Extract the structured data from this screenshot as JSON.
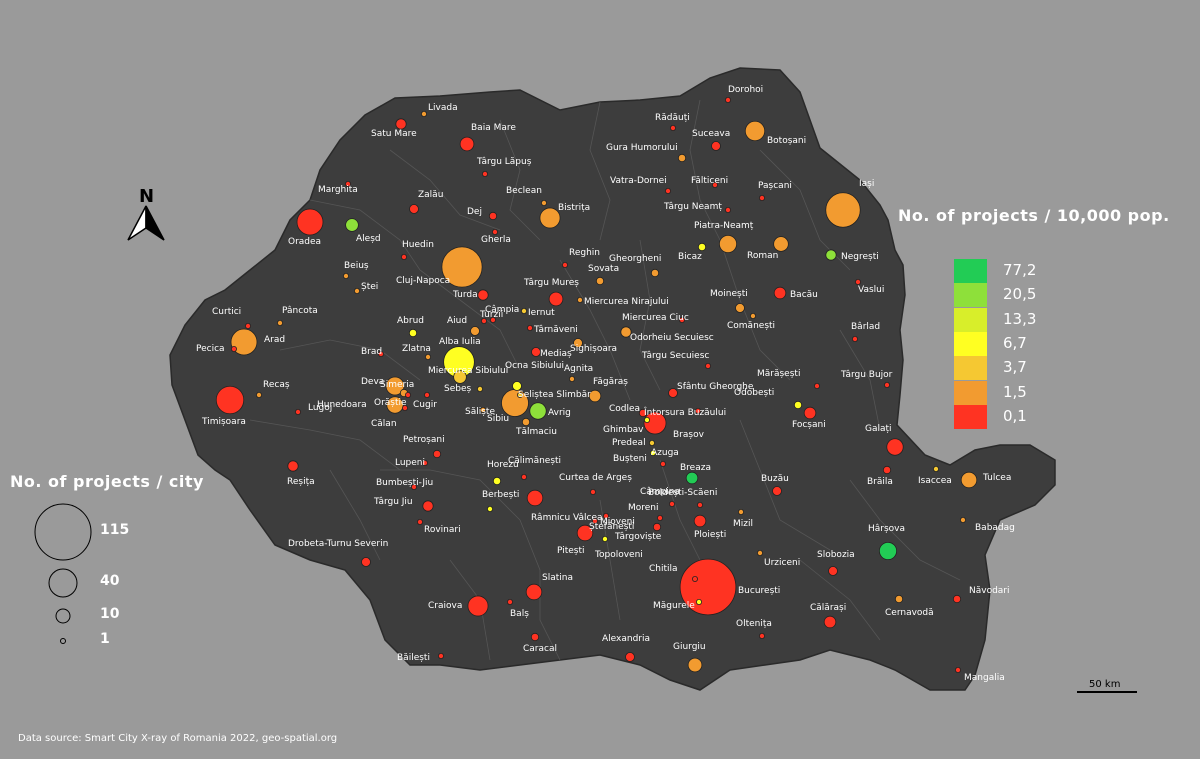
{
  "map": {
    "color_legend_title": "No. of projects / 10,000 pop.",
    "size_legend_title": "No. of projects / city",
    "source": "Data source: Smart City X-ray of Romania 2022, geo-spatial.org",
    "scale_label": "50 km",
    "north_label": "N",
    "colors": {
      "background": "#9a9a9a",
      "land": "#3d3d3d",
      "border": "#555555"
    }
  },
  "color_legend": [
    {
      "label": "77,2",
      "color": "#22cc55"
    },
    {
      "label": "20,5",
      "color": "#8ee03a"
    },
    {
      "label": "13,3",
      "color": "#d8ee2a"
    },
    {
      "label": "6,7",
      "color": "#ffff22"
    },
    {
      "label": "3,7",
      "color": "#f5c832"
    },
    {
      "label": "1,5",
      "color": "#f29b30"
    },
    {
      "label": "0,1",
      "color": "#ff3322"
    }
  ],
  "size_legend": [
    {
      "label": "115",
      "value": 115
    },
    {
      "label": "40",
      "value": 40
    },
    {
      "label": "10",
      "value": 10
    },
    {
      "label": "1",
      "value": 1
    }
  ],
  "cities": [
    {
      "name": "Dorohoi",
      "cls": 0,
      "size": 1
    },
    {
      "name": "Rădăuți",
      "cls": 0,
      "size": 1
    },
    {
      "name": "Suceava",
      "cls": 0,
      "size": 3
    },
    {
      "name": "Botoșani",
      "cls": 1,
      "size": 14
    },
    {
      "name": "Gura Humorului",
      "cls": 1,
      "size": 2
    },
    {
      "name": "Vatra-Dornei",
      "cls": 0,
      "size": 1
    },
    {
      "name": "Fălticeni",
      "cls": 0,
      "size": 1
    },
    {
      "name": "Pașcani",
      "cls": 0,
      "size": 1
    },
    {
      "name": "Iași",
      "cls": 1,
      "size": 44
    },
    {
      "name": "Târgu Neamț",
      "cls": 0,
      "size": 1
    },
    {
      "name": "Piatra-Neamț",
      "cls": 1,
      "size": 11
    },
    {
      "name": "Roman",
      "cls": 1,
      "size": 8
    },
    {
      "name": "Negrești",
      "cls": 5,
      "size": 4
    },
    {
      "name": "Vaslui",
      "cls": 0,
      "size": 1
    },
    {
      "name": "Bicaz",
      "cls": 3,
      "size": 2
    },
    {
      "name": "Gheorgheni",
      "cls": 1,
      "size": 2
    },
    {
      "name": "Moinești",
      "cls": 1,
      "size": 3
    },
    {
      "name": "Bacău",
      "cls": 0,
      "size": 5
    },
    {
      "name": "Comănești",
      "cls": 1,
      "size": 1
    },
    {
      "name": "Bârlad",
      "cls": 0,
      "size": 1
    },
    {
      "name": "Târgu Bujor",
      "cls": 0,
      "size": 1
    },
    {
      "name": "Mărășești",
      "cls": 0,
      "size": 1
    },
    {
      "name": "Odobești",
      "cls": 3,
      "size": 2
    },
    {
      "name": "Focșani",
      "cls": 0,
      "size": 5
    },
    {
      "name": "Galați",
      "cls": 0,
      "size": 10
    },
    {
      "name": "Brăila",
      "cls": 0,
      "size": 2
    },
    {
      "name": "Isaccea",
      "cls": 2,
      "size": 1
    },
    {
      "name": "Tulcea",
      "cls": 1,
      "size": 9
    },
    {
      "name": "Babadag",
      "cls": 1,
      "size": 1
    },
    {
      "name": "Hârșova",
      "cls": 6,
      "size": 11
    },
    {
      "name": "Cernavodă",
      "cls": 1,
      "size": 2
    },
    {
      "name": "Năvodari",
      "cls": 0,
      "size": 2
    },
    {
      "name": "Mangalia",
      "cls": 0,
      "size": 1
    },
    {
      "name": "Călărași",
      "cls": 0,
      "size": 5
    },
    {
      "name": "Oltenița",
      "cls": 0,
      "size": 1
    },
    {
      "name": "Giurgiu",
      "cls": 1,
      "size": 7
    },
    {
      "name": "Slobozia",
      "cls": 0,
      "size": 3
    },
    {
      "name": "Urziceni",
      "cls": 1,
      "size": 1
    },
    {
      "name": "București",
      "cls": 0,
      "size": 115
    },
    {
      "name": "Chitila",
      "cls": 0,
      "size": 1
    },
    {
      "name": "Măgurele",
      "cls": 3,
      "size": 1
    },
    {
      "name": "Ploiești",
      "cls": 0,
      "size": 5
    },
    {
      "name": "Mizil",
      "cls": 1,
      "size": 1
    },
    {
      "name": "Buzău",
      "cls": 0,
      "size": 3
    },
    {
      "name": "Boldești-Scăeni",
      "cls": 0,
      "size": 1
    },
    {
      "name": "Câmpina",
      "cls": 0,
      "size": 1
    },
    {
      "name": "Breaza",
      "cls": 6,
      "size": 5
    },
    {
      "name": "Bușteni",
      "cls": 0,
      "size": 1
    },
    {
      "name": "Azuga",
      "cls": 3,
      "size": 1
    },
    {
      "name": "Predeal",
      "cls": 2,
      "size": 1
    },
    {
      "name": "Brașov",
      "cls": 0,
      "size": 18
    },
    {
      "name": "Ghimbav",
      "cls": 3,
      "size": 1
    },
    {
      "name": "Codlea",
      "cls": 0,
      "size": 2
    },
    {
      "name": "Întorsura Buzăului",
      "cls": 0,
      "size": 1
    },
    {
      "name": "Sfântu Gheorghe",
      "cls": 0,
      "size": 3
    },
    {
      "name": "Târgu Secuiesc",
      "cls": 0,
      "size": 1
    },
    {
      "name": "Miercurea Ciuc",
      "cls": 0,
      "size": 1
    },
    {
      "name": "Odorheiu Secuiesc",
      "cls": 1,
      "size": 4
    },
    {
      "name": "Miercurea Nirajului",
      "cls": 1,
      "size": 1
    },
    {
      "name": "Sovata",
      "cls": 1,
      "size": 2
    },
    {
      "name": "Reghin",
      "cls": 0,
      "size": 1
    },
    {
      "name": "Târgu Mureș",
      "cls": 0,
      "size": 7
    },
    {
      "name": "Sighișoara",
      "cls": 1,
      "size": 3
    },
    {
      "name": "Mediaș",
      "cls": 0,
      "size": 3
    },
    {
      "name": "Agnita",
      "cls": 1,
      "size": 1
    },
    {
      "name": "Făgăraș",
      "cls": 1,
      "size": 5
    },
    {
      "name": "Avrig",
      "cls": 5,
      "size": 10
    },
    {
      "name": "Sibiu",
      "cls": 1,
      "size": 27
    },
    {
      "name": "Tălmaciu",
      "cls": 1,
      "size": 2
    },
    {
      "name": "Săliște",
      "cls": 1,
      "size": 1
    },
    {
      "name": "Ocna Sibiului",
      "cls": 3,
      "size": 3
    },
    {
      "name": "Miercurea Sibiului",
      "cls": 2,
      "size": 1
    },
    {
      "name": "Seliștea Slimbăr",
      "cls": 2,
      "size": 1
    },
    {
      "name": "Alba Iulia",
      "cls": 3,
      "size": 35
    },
    {
      "name": "Sebeș",
      "cls": 2,
      "size": 6
    },
    {
      "name": "Cugir",
      "cls": 0,
      "size": 1
    },
    {
      "name": "Orăștie",
      "cls": 1,
      "size": 2
    },
    {
      "name": "Simeria",
      "cls": 0,
      "size": 1
    },
    {
      "name": "Deva",
      "cls": 1,
      "size": 12
    },
    {
      "name": "Hunedoara",
      "cls": 1,
      "size": 10
    },
    {
      "name": "Călan",
      "cls": 0,
      "size": 1
    },
    {
      "name": "Petroșani",
      "cls": 0,
      "size": 2
    },
    {
      "name": "Lupeni",
      "cls": 0,
      "size": 1
    },
    {
      "name": "Brad",
      "cls": 0,
      "size": 1
    },
    {
      "name": "Zlatna",
      "cls": 1,
      "size": 1
    },
    {
      "name": "Abrud",
      "cls": 3,
      "size": 2
    },
    {
      "name": "Aiud",
      "cls": 1,
      "size": 3
    },
    {
      "name": "Turzii",
      "cls": 0,
      "size": 1
    },
    {
      "name": "Câmpia",
      "cls": 0,
      "size": 1
    },
    {
      "name": "Turda",
      "cls": 0,
      "size": 4
    },
    {
      "name": "Iernut",
      "cls": 2,
      "size": 1
    },
    {
      "name": "Târnăveni",
      "cls": 0,
      "size": 1
    },
    {
      "name": "Cluj-Napoca",
      "cls": 1,
      "size": 60
    },
    {
      "name": "Huedin",
      "cls": 0,
      "size": 1
    },
    {
      "name": "Gherla",
      "cls": 0,
      "size": 1
    },
    {
      "name": "Dej",
      "cls": 0,
      "size": 2
    },
    {
      "name": "Beclean",
      "cls": 1,
      "size": 1
    },
    {
      "name": "Bistrița",
      "cls": 1,
      "size": 15
    },
    {
      "name": "Târgu Lăpuș",
      "cls": 0,
      "size": 1
    },
    {
      "name": "Baia Mare",
      "cls": 0,
      "size": 7
    },
    {
      "name": "Livada",
      "cls": 1,
      "size": 1
    },
    {
      "name": "Satu Mare",
      "cls": 0,
      "size": 4
    },
    {
      "name": "Marghita",
      "cls": 0,
      "size": 1
    },
    {
      "name": "Zalău",
      "cls": 0,
      "size": 3
    },
    {
      "name": "Oradea",
      "cls": 0,
      "size": 25
    },
    {
      "name": "Aleșd",
      "cls": 5,
      "size": 6
    },
    {
      "name": "Beiuș",
      "cls": 1,
      "size": 1
    },
    {
      "name": "Ștei",
      "cls": 1,
      "size": 1
    },
    {
      "name": "Curtici",
      "cls": 0,
      "size": 1
    },
    {
      "name": "Pâncota",
      "cls": 1,
      "size": 1
    },
    {
      "name": "Arad",
      "cls": 1,
      "size": 25
    },
    {
      "name": "Pecica",
      "cls": 0,
      "size": 1
    },
    {
      "name": "Recaș",
      "cls": 1,
      "size": 1
    },
    {
      "name": "Timișoara",
      "cls": 0,
      "size": 28
    },
    {
      "name": "Lugoj",
      "cls": 0,
      "size": 1
    },
    {
      "name": "Reșița",
      "cls": 0,
      "size": 4
    },
    {
      "name": "Bumbești-Jiu",
      "cls": 0,
      "size": 1
    },
    {
      "name": "Târgu Jiu",
      "cls": 0,
      "size": 4
    },
    {
      "name": "Rovinari",
      "cls": 0,
      "size": 1
    },
    {
      "name": "Drobeta-Turnu Severin",
      "cls": 0,
      "size": 3
    },
    {
      "name": "Horezu",
      "cls": 3,
      "size": 2
    },
    {
      "name": "Berbești",
      "cls": 3,
      "size": 1
    },
    {
      "name": "Călimănești",
      "cls": 0,
      "size": 1
    },
    {
      "name": "Râmnicu Vâlcea",
      "cls": 0,
      "size": 9
    },
    {
      "name": "Curtea de Argeș",
      "cls": 0,
      "size": 1
    },
    {
      "name": "Mioveni",
      "cls": 0,
      "size": 1
    },
    {
      "name": "Moreni",
      "cls": 0,
      "size": 1
    },
    {
      "name": "Ștefănești",
      "cls": 0,
      "size": 1
    },
    {
      "name": "Pitești",
      "cls": 0,
      "size": 9
    },
    {
      "name": "Topoloveni",
      "cls": 3,
      "size": 1
    },
    {
      "name": "Târgoviște",
      "cls": 0,
      "size": 2
    },
    {
      "name": "Slatina",
      "cls": 0,
      "size": 9
    },
    {
      "name": "Craiova",
      "cls": 0,
      "size": 15
    },
    {
      "name": "Balș",
      "cls": 0,
      "size": 1
    },
    {
      "name": "Caracal",
      "cls": 0,
      "size": 2
    },
    {
      "name": "Băilești",
      "cls": 0,
      "size": 1
    },
    {
      "name": "Alexandria",
      "cls": 0,
      "size": 3
    }
  ]
}
